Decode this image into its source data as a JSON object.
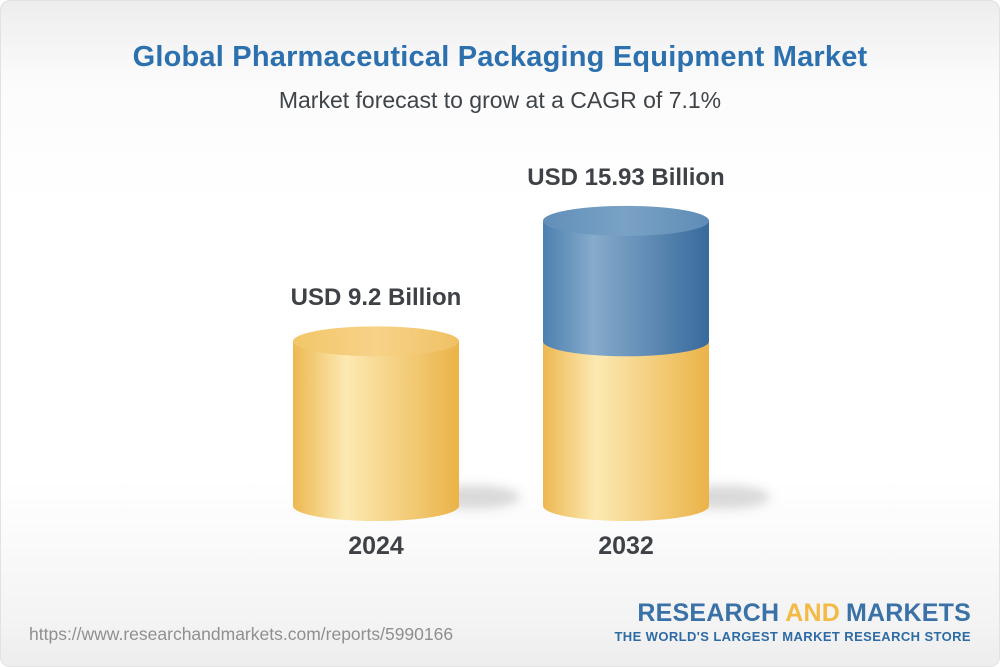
{
  "title": "Global Pharmaceutical Packaging Equipment Market",
  "subtitle": "Market forecast to grow at a CAGR of 7.1%",
  "chart_data": {
    "type": "bar",
    "style": "3d-cylinder",
    "categories": [
      "2024",
      "2032"
    ],
    "values": [
      9.2,
      15.93
    ],
    "unit": "USD Billion",
    "value_labels": [
      "USD 9.2 Billion",
      "USD 15.93 Billion"
    ],
    "cagr": "7.1%",
    "legend": "second bar stacked: base segment equals 2024 value (yellow), growth segment on top (blue)",
    "colors": {
      "yellow_body": [
        "#EDB851",
        "#FCE9B2",
        "#EBB348"
      ],
      "yellow_top": [
        "#F2C669",
        "#F7D288",
        "#F0C164"
      ],
      "blue_body": [
        "#4C80B0",
        "#86ABCB",
        "#376A9D"
      ],
      "blue_top": [
        "#618FB9",
        "#7AA2C5",
        "#5E8CB6"
      ],
      "shadow": "rgba(90,90,90,0.22)"
    }
  },
  "text_colors": {
    "title": "#2C70AE",
    "subtitle": "#3F4448",
    "labels": "#3E4247",
    "url": "#8F8F8F",
    "logo_blue": "#3A72A8",
    "logo_gold": "#F3BA45",
    "logo_tagline": "#2E6BA5"
  },
  "footer": {
    "url": "https://www.researchandmarkets.com/reports/5990166",
    "logo": {
      "research": "RESEARCH",
      "and": "AND",
      "markets": "MARKETS",
      "tagline": "THE WORLD'S LARGEST MARKET RESEARCH STORE"
    }
  }
}
